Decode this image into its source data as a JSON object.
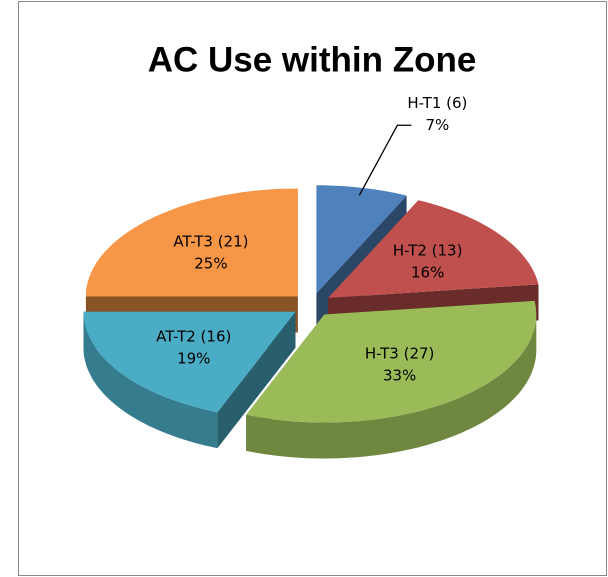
{
  "chart_data": {
    "type": "pie",
    "title": "AC Use within Zone",
    "categories": [
      "H-T1 (6)",
      "H-T2 (13)",
      "H-T3 (27)",
      "AT-T2 (16)",
      "AT-T3 (21)"
    ],
    "values": [
      7,
      16,
      33,
      19,
      25
    ],
    "value_labels": [
      "7%",
      "16%",
      "33%",
      "19%",
      "25%"
    ],
    "colors": [
      "#4f81bd",
      "#c0504d",
      "#9bbb59",
      "#4bacc6",
      "#f79646"
    ]
  }
}
